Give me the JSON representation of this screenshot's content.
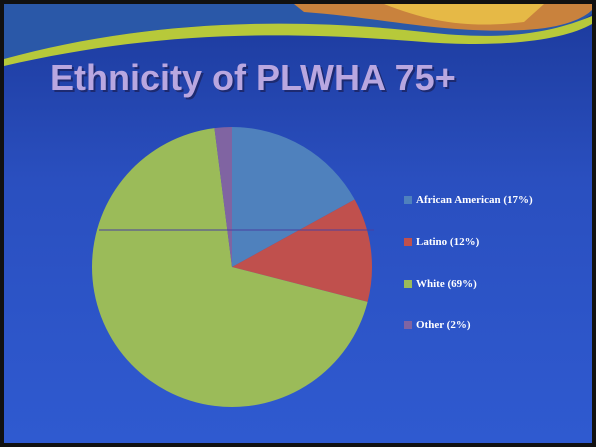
{
  "chart_data": {
    "type": "pie",
    "title": "Ethnicity of PLWHA 75+",
    "categories": [
      "African American (17%)",
      "Latino (12%)",
      "White (69%)",
      "Other (2%)"
    ],
    "values": [
      17,
      12,
      69,
      2
    ],
    "colors": [
      "#4f81bd",
      "#c0504d",
      "#9bbb59",
      "#8064a2"
    ],
    "legend": "right"
  }
}
